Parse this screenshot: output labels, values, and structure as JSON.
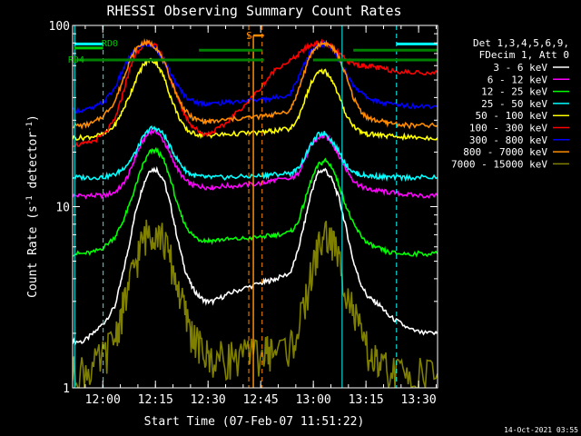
{
  "chart_data": {
    "type": "line",
    "title": "RHESSI Observing Summary Count Rates",
    "xlabel": "Start Time (07-Feb-07 11:51:22)",
    "ylabel_main": "Count Rate (s",
    "ylabel_sup": "-1",
    "ylabel_end": " detector",
    "ylabel_sup2": "-1",
    "ylabel_close": ")",
    "x_unit": "minutes after 11:51:22",
    "xlim": [
      0,
      104
    ],
    "ylim": [
      1,
      100
    ],
    "y_scale": "log",
    "x_ticks": [
      {
        "label": "12:00",
        "minute": 8.6
      },
      {
        "label": "12:15",
        "minute": 23.6
      },
      {
        "label": "12:30",
        "minute": 38.6
      },
      {
        "label": "12:45",
        "minute": 53.6
      },
      {
        "label": "13:00",
        "minute": 68.6
      },
      {
        "label": "13:15",
        "minute": 83.6
      },
      {
        "label": "13:30",
        "minute": 98.6
      }
    ],
    "y_ticks": [
      {
        "label": "1",
        "value": 1
      },
      {
        "label": "10",
        "value": 10
      },
      {
        "label": "100",
        "value": 100
      }
    ],
    "legend": {
      "placement": "right",
      "header": [
        "Det 1,3,4,5,6,9,",
        "FDecim 1, Att 0"
      ]
    },
    "series": [
      {
        "name": "3 - 6 keV",
        "color": "#ffffff",
        "x": [
          0,
          3,
          6,
          9,
          12,
          14,
          16,
          18,
          20,
          22,
          24,
          26,
          28,
          30,
          32,
          34,
          36,
          38,
          40,
          43,
          46,
          50,
          54,
          56,
          58,
          62,
          64,
          66,
          68,
          70,
          72,
          74,
          76,
          78,
          80,
          82,
          84,
          86,
          88,
          90,
          93,
          96,
          100,
          104
        ],
        "y": [
          1.8,
          1.8,
          2.0,
          2.3,
          2.8,
          4.0,
          6.0,
          9.5,
          13,
          16,
          16,
          14,
          10,
          6.5,
          4.5,
          3.6,
          3.2,
          3.0,
          3.0,
          3.2,
          3.4,
          3.6,
          3.8,
          3.9,
          4.0,
          4.3,
          5.5,
          8,
          12,
          15.5,
          16,
          14,
          11,
          7.5,
          5,
          3.8,
          3.2,
          3.0,
          2.8,
          2.5,
          2.3,
          2.1,
          2.0,
          2.0
        ]
      },
      {
        "name": "6 - 12 keV",
        "color": "#ff00ff",
        "x": [
          0,
          3,
          6,
          9,
          12,
          14,
          16,
          18,
          20,
          22,
          24,
          26,
          28,
          30,
          32,
          34,
          36,
          38,
          40,
          43,
          46,
          50,
          54,
          56,
          58,
          62,
          64,
          66,
          68,
          70,
          72,
          74,
          76,
          78,
          80,
          82,
          84,
          86,
          88,
          90,
          93,
          96,
          100,
          104
        ],
        "y": [
          11.5,
          11.5,
          11.5,
          11.5,
          12,
          13,
          15,
          19,
          23,
          26,
          26,
          23,
          19,
          16,
          14,
          13.2,
          13,
          12.8,
          12.8,
          13,
          13,
          13.2,
          13.5,
          13.8,
          14,
          14.2,
          15,
          18,
          22,
          24,
          24.5,
          22.5,
          19,
          16,
          14,
          13,
          12.5,
          12.3,
          12.2,
          12,
          11.8,
          11.6,
          11.5,
          11.5
        ]
      },
      {
        "name": "12 - 25 keV",
        "color": "#00ff00",
        "x": [
          0,
          3,
          6,
          9,
          12,
          14,
          16,
          18,
          20,
          22,
          24,
          26,
          28,
          30,
          32,
          34,
          36,
          38,
          40,
          43,
          46,
          50,
          54,
          56,
          58,
          62,
          64,
          66,
          68,
          70,
          72,
          74,
          76,
          78,
          80,
          82,
          84,
          86,
          88,
          90,
          93,
          96,
          100,
          104
        ],
        "y": [
          5.5,
          5.5,
          5.6,
          6.0,
          6.8,
          8,
          10,
          13,
          17,
          20,
          20.5,
          18,
          14,
          10,
          8,
          7,
          6.6,
          6.5,
          6.5,
          6.6,
          6.6,
          6.7,
          6.8,
          6.9,
          7,
          7.2,
          8,
          10.5,
          14,
          17,
          18,
          16.5,
          13,
          10,
          8,
          7,
          6.3,
          6,
          5.8,
          5.6,
          5.5,
          5.5,
          5.5,
          5.5
        ]
      },
      {
        "name": "25 - 50 keV",
        "color": "#00ffff",
        "x": [
          0,
          3,
          6,
          9,
          12,
          14,
          16,
          18,
          20,
          22,
          24,
          26,
          28,
          30,
          32,
          34,
          36,
          38,
          40,
          43,
          46,
          50,
          54,
          56,
          58,
          62,
          64,
          66,
          68,
          70,
          72,
          74,
          76,
          78,
          80,
          82,
          84,
          86,
          88,
          90,
          93,
          96,
          100,
          104
        ],
        "y": [
          14.5,
          14.5,
          14.5,
          14.6,
          15,
          16,
          17.5,
          20,
          24,
          27,
          27,
          25,
          21,
          18,
          16,
          15,
          14.7,
          14.5,
          14.5,
          14.5,
          14.6,
          14.7,
          14.8,
          15,
          15.1,
          15.3,
          16,
          18.5,
          22,
          25,
          25.5,
          23,
          20,
          17,
          15.5,
          15,
          14.8,
          14.7,
          14.6,
          14.5,
          14.5,
          14.5,
          14.5,
          14.5
        ]
      },
      {
        "name": "50 - 100 keV",
        "color": "#ffff00",
        "x": [
          0,
          3,
          6,
          9,
          12,
          14,
          16,
          18,
          20,
          22,
          24,
          26,
          28,
          30,
          32,
          34,
          36,
          38,
          40,
          43,
          46,
          50,
          54,
          56,
          58,
          62,
          64,
          66,
          68,
          70,
          72,
          74,
          76,
          78,
          80,
          82,
          84,
          86,
          88,
          90,
          93,
          96,
          100,
          104
        ],
        "y": [
          24,
          24,
          24.5,
          25,
          28,
          33,
          40,
          50,
          60,
          65,
          62,
          52,
          40,
          32,
          27,
          25.5,
          25,
          24.8,
          24.8,
          25,
          25.2,
          25.5,
          25.7,
          26,
          26.3,
          26.8,
          30,
          38,
          48,
          55,
          56,
          50,
          40,
          32,
          28,
          26,
          25.2,
          25,
          24.8,
          24.5,
          24.3,
          24.2,
          24,
          24
        ]
      },
      {
        "name": "100 - 300 keV",
        "color": "#ff0000",
        "x": [
          0,
          3,
          6,
          9,
          12,
          14,
          16,
          18,
          20,
          22,
          24,
          26,
          28,
          30,
          32,
          34,
          36,
          38,
          40,
          43,
          46,
          50,
          54,
          56,
          58,
          62,
          64,
          66,
          68,
          70,
          72,
          74,
          76,
          78,
          80,
          82,
          84,
          86,
          88,
          90,
          93,
          96,
          100,
          104
        ],
        "y": [
          22,
          22,
          23,
          25,
          30,
          40,
          55,
          70,
          78,
          80,
          76,
          65,
          50,
          40,
          32,
          28,
          26,
          25,
          26,
          28,
          32,
          38,
          46,
          52,
          58,
          64,
          68,
          74,
          78,
          80,
          80,
          76,
          70,
          64,
          62,
          60,
          60,
          59,
          58,
          57,
          56,
          55,
          55,
          55
        ]
      },
      {
        "name": "300 - 800 keV",
        "color": "#0000ff",
        "x": [
          0,
          3,
          6,
          9,
          12,
          14,
          16,
          18,
          20,
          22,
          24,
          26,
          28,
          30,
          32,
          34,
          36,
          38,
          40,
          43,
          46,
          50,
          54,
          56,
          58,
          62,
          64,
          66,
          68,
          70,
          72,
          74,
          76,
          78,
          80,
          82,
          84,
          86,
          88,
          90,
          93,
          96,
          100,
          104
        ],
        "y": [
          34,
          34,
          35,
          38,
          45,
          55,
          66,
          74,
          78,
          78,
          74,
          64,
          54,
          46,
          41,
          38.5,
          37.5,
          37,
          37,
          37.5,
          38,
          38.5,
          39,
          39.5,
          40,
          42,
          50,
          62,
          72,
          77,
          78,
          74,
          64,
          54,
          47,
          43,
          40,
          38.5,
          37.5,
          37,
          36.5,
          36,
          36,
          36
        ]
      },
      {
        "name": "800 - 7000 keV",
        "color": "#ff8c00",
        "x": [
          0,
          3,
          6,
          9,
          12,
          14,
          16,
          18,
          20,
          22,
          24,
          26,
          28,
          30,
          32,
          34,
          36,
          38,
          40,
          43,
          46,
          50,
          54,
          56,
          58,
          62,
          64,
          66,
          68,
          70,
          72,
          74,
          76,
          78,
          80,
          82,
          84,
          86,
          88,
          90,
          93,
          96,
          100,
          104
        ],
        "y": [
          28,
          28,
          29,
          32,
          38,
          48,
          62,
          74,
          80,
          80,
          75,
          63,
          50,
          40,
          34,
          31,
          30,
          29.5,
          29.5,
          30,
          30.5,
          31,
          31.5,
          32,
          32.5,
          34,
          42,
          55,
          70,
          78,
          80,
          76,
          66,
          52,
          40,
          34,
          31,
          30,
          29.5,
          29,
          28.5,
          28,
          28,
          28
        ]
      },
      {
        "name": "7000 - 15000 keV",
        "color": "#808000",
        "x": [
          0,
          3,
          6,
          9,
          12,
          14,
          16,
          18,
          20,
          22,
          24,
          26,
          28,
          30,
          32,
          34,
          36,
          38,
          40,
          43,
          46,
          50,
          54,
          56,
          58,
          62,
          64,
          66,
          68,
          70,
          72,
          74,
          76,
          78,
          80,
          82,
          84,
          86,
          88,
          90,
          93,
          96,
          100,
          104
        ],
        "y": [
          1.2,
          1.25,
          1.3,
          1.5,
          1.9,
          2.6,
          3.6,
          5,
          6.5,
          7.5,
          7.5,
          6.5,
          5,
          3.6,
          2.6,
          2,
          1.7,
          1.5,
          1.45,
          1.45,
          1.5,
          1.5,
          1.55,
          1.6,
          1.6,
          1.7,
          2,
          2.8,
          4.2,
          6,
          7,
          6.5,
          5,
          3.6,
          2.6,
          2,
          1.6,
          1.4,
          1.3,
          1.25,
          1.2,
          1.2,
          1.2,
          1.2
        ]
      }
    ],
    "annotations": {
      "S_label": "S",
      "RD0_label": "RD0",
      "RD4_label": "RD4",
      "dashed_lines_minutes": [
        50.2,
        54.0
      ],
      "cyan_dashed_minutes": [
        8.7,
        92.3
      ],
      "cyan_solid_minutes": [
        0.6,
        76.8
      ],
      "orange_S_segment": {
        "x": [
          51.5,
          54.5
        ],
        "y": 88
      },
      "orange_S_vertical_minute": 51.5,
      "rd0_segment": {
        "x": [
          0.5,
          8.7
        ],
        "y": 75
      },
      "rd4_segment": {
        "x": [
          0.5,
          54.5
        ],
        "y": 64.5
      },
      "rd4_segment2": {
        "x": [
          68.5,
          104
        ],
        "y": 64.5
      },
      "green_top_segment": {
        "x": [
          36.0,
          54.0
        ],
        "y": 73
      },
      "green_top_segment2": {
        "x": [
          80.0,
          104
        ],
        "y": 73
      },
      "cyan_top_segment": {
        "x": [
          0.5,
          8.7
        ],
        "y": 79
      },
      "cyan_top_segment2": {
        "x": [
          92.3,
          104
        ],
        "y": 79
      }
    },
    "timestamp": "14-Oct-2021 03:55"
  }
}
